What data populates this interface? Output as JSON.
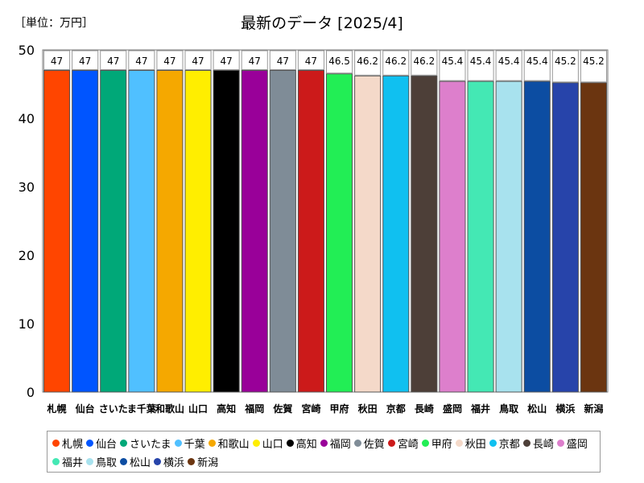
{
  "unit_label": "［単位：万円］",
  "chart_data": {
    "type": "bar",
    "title": "最新のデータ [2025/4]",
    "xlabel": "",
    "ylabel": "",
    "ylim": [
      0,
      50
    ],
    "yticks": [
      0,
      10,
      20,
      30,
      40,
      50
    ],
    "grid": false,
    "legend": "bottom",
    "categories": [
      "札幌",
      "仙台",
      "さいたま",
      "千葉",
      "和歌山",
      "山口",
      "高知",
      "福岡",
      "佐賀",
      "宮崎",
      "甲府",
      "秋田",
      "京都",
      "長崎",
      "盛岡",
      "福井",
      "鳥取",
      "松山",
      "横浜",
      "新潟"
    ],
    "x_tick_labels": [
      "札幌",
      "仙台",
      "さいた",
      "ま千葉",
      "和歌山",
      "山口",
      "高知",
      "福岡",
      "佐賀",
      "宮崎",
      "甲府",
      "秋田",
      "京都",
      "長崎",
      "盛岡",
      "福井",
      "鳥取",
      "松山",
      "横浜",
      "新潟"
    ],
    "values": [
      47,
      47,
      47,
      47,
      47,
      47,
      47,
      47,
      47,
      47,
      46.5,
      46.2,
      46.2,
      46.2,
      45.4,
      45.4,
      45.4,
      45.4,
      45.2,
      45.2
    ],
    "data_labels": [
      "47",
      "47",
      "47",
      "47",
      "47",
      "47",
      "47",
      "47",
      "47",
      "47",
      "46.5",
      "46.2",
      "46.2",
      "46.2",
      "45.4",
      "45.4",
      "45.4",
      "45.4",
      "45.2",
      "45.2"
    ],
    "colors": [
      "#ff4500",
      "#0055ff",
      "#00a878",
      "#50c0ff",
      "#f5a800",
      "#ffee00",
      "#000000",
      "#990099",
      "#7f8c97",
      "#cc1a1a",
      "#22ee55",
      "#f4d9c9",
      "#10c0f0",
      "#4d3f38",
      "#dd7fcc",
      "#44e8b4",
      "#a8e2ee",
      "#0c4da2",
      "#2744aa",
      "#6b3510"
    ],
    "legend_labels": [
      "札幌",
      "仙台",
      "さいたま",
      "千葉",
      "和歌山",
      "山口",
      "高知",
      "福岡",
      "佐賀",
      "宮崎",
      "甲府",
      "秋田",
      "京都",
      "長崎",
      "盛岡",
      "福井",
      "鳥取",
      "松山",
      "横浜",
      "新潟"
    ]
  }
}
